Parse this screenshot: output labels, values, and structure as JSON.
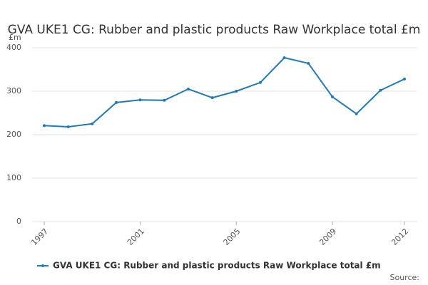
{
  "chart_data": {
    "type": "line",
    "title": "GVA UKE1 CG: Rubber and plastic products Raw Workplace total £m",
    "y_label": "£m",
    "source_label": "Source:",
    "x": [
      1997,
      1998,
      1999,
      2000,
      2001,
      2002,
      2003,
      2004,
      2005,
      2006,
      2007,
      2008,
      2009,
      2010,
      2011,
      2012
    ],
    "series": [
      {
        "name": "GVA UKE1 CG: Rubber and plastic products Raw Workplace total £m",
        "color": "#1f7ab8",
        "values": [
          221,
          218,
          225,
          274,
          280,
          279,
          305,
          285,
          300,
          320,
          377,
          364,
          287,
          248,
          302,
          328
        ]
      }
    ],
    "xlim": [
      1997,
      2012
    ],
    "xticks": [
      1997,
      2001,
      2005,
      2009,
      2012
    ],
    "ylim": [
      0,
      400
    ],
    "yticks": [
      0,
      100,
      200,
      300,
      400
    ],
    "grid": true,
    "legend": "bottom"
  }
}
